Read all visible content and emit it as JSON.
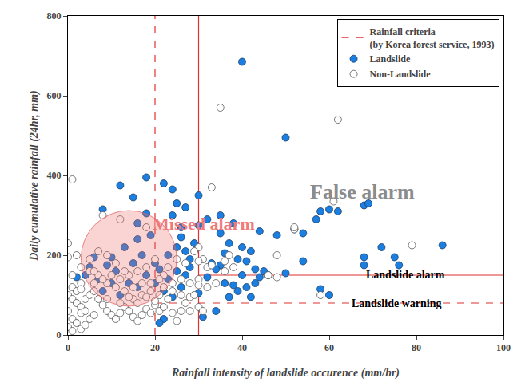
{
  "chart_data": {
    "type": "scatter",
    "xlabel": "Rainfall intensity of landslide occurence (mm/hr)",
    "ylabel": "Daily cumulative rainfall (24hr, mm)",
    "xlim": [
      0,
      100
    ],
    "ylim": [
      0,
      800
    ],
    "xticks": [
      0,
      20,
      40,
      60,
      80,
      100
    ],
    "yticks": [
      0,
      200,
      400,
      600,
      800
    ],
    "grid": false,
    "legend": "upper right",
    "annotations": [
      "Missed alarm",
      "False alarm",
      "Landslide alarm",
      "Landslide warning"
    ],
    "criteria": {
      "name": "Rainfall criteria\n(by Korea forest service, 1993)",
      "color": "#e03030",
      "lines": [
        {
          "x": 20,
          "y": 80,
          "line_style": "dashed"
        },
        {
          "x": 30,
          "y": 150,
          "line_style": "solid"
        }
      ]
    },
    "series": [
      {
        "name": "Landslide",
        "color": "#1a7fe0",
        "marker": "circle",
        "x": [
          40,
          50,
          18,
          22,
          12,
          24,
          15,
          30,
          25,
          27,
          8,
          18,
          30,
          26,
          35,
          32,
          38,
          44,
          48,
          52,
          54,
          57,
          58,
          60,
          62,
          68,
          69,
          35,
          37,
          40,
          42,
          36,
          39,
          33,
          35,
          41,
          43,
          45,
          44,
          46,
          50,
          54,
          58,
          60,
          68,
          68,
          72,
          75,
          76,
          86,
          38,
          39,
          37,
          41,
          42,
          34,
          31,
          22,
          21,
          28,
          27,
          29,
          26,
          25,
          23,
          20,
          19,
          16,
          13,
          10,
          9,
          6,
          5,
          4,
          2,
          7,
          11,
          14,
          16,
          18,
          20,
          22,
          24,
          26,
          12,
          10,
          8,
          15,
          17,
          21,
          23,
          25,
          27,
          30,
          32,
          34,
          36,
          40,
          43,
          16,
          24,
          28
        ],
        "y": [
          685,
          495,
          395,
          380,
          375,
          365,
          345,
          350,
          330,
          320,
          315,
          305,
          275,
          270,
          300,
          290,
          280,
          260,
          250,
          265,
          255,
          290,
          310,
          315,
          310,
          325,
          330,
          255,
          230,
          220,
          210,
          205,
          190,
          180,
          175,
          185,
          165,
          160,
          145,
          150,
          155,
          185,
          115,
          100,
          175,
          195,
          220,
          195,
          175,
          225,
          125,
          110,
          95,
          120,
          95,
          60,
          45,
          40,
          30,
          190,
          210,
          230,
          245,
          220,
          200,
          180,
          250,
          240,
          220,
          195,
          175,
          195,
          170,
          150,
          145,
          140,
          160,
          130,
          120,
          150,
          130,
          110,
          95,
          120,
          100,
          130,
          110,
          180,
          200,
          165,
          140,
          160,
          150,
          105,
          145,
          165,
          130,
          150,
          130,
          280,
          300,
          170
        ]
      },
      {
        "name": "Non-Landslide",
        "color": "#ffffff",
        "marker": "circle",
        "x": [
          1,
          35,
          62,
          33,
          61,
          79,
          52,
          0,
          0,
          2,
          1,
          0,
          1,
          2,
          3,
          0,
          1,
          2,
          0,
          1,
          3,
          4,
          5,
          6,
          3,
          4,
          5,
          6,
          7,
          8,
          9,
          10,
          11,
          12,
          13,
          14,
          15,
          16,
          17,
          18,
          19,
          20,
          21,
          22,
          24,
          26,
          28,
          30,
          31,
          28,
          26,
          23,
          21,
          19,
          17,
          15,
          13,
          11,
          9,
          7,
          5,
          3,
          2,
          4,
          6,
          8,
          10,
          12,
          14,
          16,
          18,
          20,
          22,
          24,
          26,
          28,
          30,
          31,
          32,
          30,
          29,
          27,
          25,
          23,
          21,
          19,
          17,
          15,
          13,
          11,
          9,
          7,
          5,
          3,
          1,
          8,
          12,
          18,
          30,
          33,
          36,
          34,
          32,
          30,
          36,
          37,
          46,
          48,
          52,
          58,
          48,
          38,
          3,
          6,
          9,
          12,
          14,
          16,
          18,
          20,
          22,
          24,
          27,
          29,
          25
        ],
        "y": [
          390,
          570,
          540,
          370,
          335,
          225,
          265,
          230,
          195,
          200,
          120,
          100,
          90,
          80,
          70,
          60,
          40,
          30,
          20,
          10,
          15,
          25,
          40,
          50,
          55,
          90,
          100,
          110,
          90,
          75,
          60,
          50,
          40,
          55,
          70,
          60,
          45,
          35,
          50,
          65,
          55,
          75,
          60,
          70,
          55,
          60,
          60,
          70,
          60,
          95,
          100,
          90,
          100,
          110,
          100,
          90,
          110,
          120,
          130,
          150,
          160,
          130,
          110,
          60,
          160,
          140,
          150,
          140,
          150,
          160,
          170,
          190,
          150,
          130,
          140,
          130,
          140,
          190,
          170,
          220,
          210,
          180,
          190,
          170,
          140,
          130,
          130,
          120,
          160,
          180,
          200,
          210,
          190,
          170,
          150,
          300,
          290,
          270,
          185,
          175,
          160,
          130,
          120,
          125,
          185,
          200,
          150,
          200,
          270,
          100,
          145,
          170,
          115,
          130,
          90,
          80,
          95,
          80,
          95,
          85,
          120,
          110,
          80,
          100,
          35
        ]
      }
    ]
  }
}
